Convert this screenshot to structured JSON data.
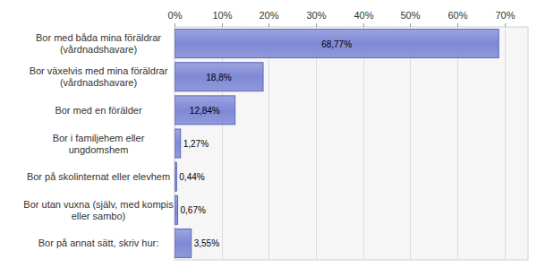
{
  "chart_data": {
    "type": "bar",
    "orientation": "horizontal",
    "categories": [
      "Bor med båda mina föräldrar (vårdnadshavare)",
      "Bor växelvis med mina föräldrar (vårdnadshavare)",
      "Bor med en förälder",
      "Bor i familjehem eller ungdomshem",
      "Bor på skolinternat eller elevhem",
      "Bor utan vuxna (själv, med kompis eller sambo)",
      "Bor på annat sätt, skriv hur:"
    ],
    "values": [
      68.77,
      18.8,
      12.84,
      1.27,
      0.44,
      0.67,
      3.55
    ],
    "value_labels": [
      "68,77%",
      "18,8%",
      "12,84%",
      "1,27%",
      "0,44%",
      "0,67%",
      "3,55%"
    ],
    "data_labels": true,
    "color": "#7f89d6",
    "xlim": [
      0,
      75
    ],
    "xticks": [
      {
        "value": 0,
        "label": "0%"
      },
      {
        "value": 10,
        "label": "10%"
      },
      {
        "value": 20,
        "label": "20%"
      },
      {
        "value": 30,
        "label": "30%"
      },
      {
        "value": 40,
        "label": "40%"
      },
      {
        "value": 50,
        "label": "50%"
      },
      {
        "value": 60,
        "label": "60%"
      },
      {
        "value": 70,
        "label": "70%"
      }
    ],
    "grid": true
  }
}
